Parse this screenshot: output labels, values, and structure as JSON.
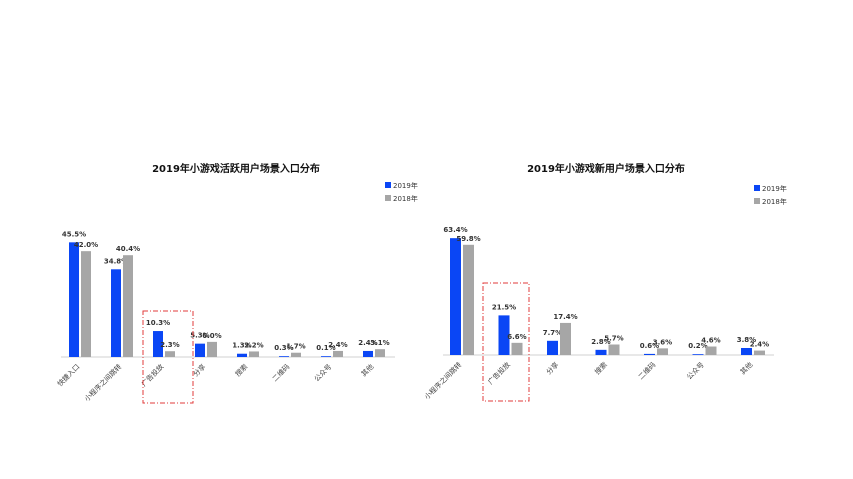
{
  "colors": {
    "series_2019": "#0a46f5",
    "series_2018": "#a6a6a6",
    "baseline": "#d0d0d0",
    "highlight": "#e23b3b",
    "leader": "#999999"
  },
  "chart_data": [
    {
      "type": "bar",
      "title": "2019年小游戏活跃用户场景入口分布",
      "categories": [
        "快捷入口",
        "小程序之间跳转",
        "广告投放",
        "分享",
        "搜索",
        "二维码",
        "公众号",
        "其他"
      ],
      "series": [
        {
          "name": "2019年",
          "values": [
            45.5,
            34.8,
            10.3,
            5.3,
            1.3,
            0.3,
            0.1,
            2.4
          ],
          "labels": [
            "45.5%",
            "34.8%",
            "10.3%",
            "5.3%",
            "1.3%",
            "0.3%",
            "0.1%",
            "2.4%"
          ]
        },
        {
          "name": "2018年",
          "values": [
            42.0,
            40.4,
            2.3,
            6.0,
            2.2,
            1.7,
            2.4,
            3.1
          ],
          "labels": [
            "42.0%",
            "40.4%",
            "2.3%",
            "6.0%",
            "2.2%",
            "1.7%",
            "2.4%",
            "3.1%"
          ]
        }
      ],
      "ylim": [
        0,
        50
      ],
      "grid": false,
      "legend": "top-right",
      "highlight_category": "广告投放"
    },
    {
      "type": "bar",
      "title": "2019年小游戏新用户场景入口分布",
      "categories": [
        "小程序之间跳转",
        "广告投放",
        "分享",
        "搜索",
        "二维码",
        "公众号",
        "其他"
      ],
      "series": [
        {
          "name": "2019年",
          "values": [
            63.4,
            21.5,
            7.7,
            2.8,
            0.6,
            0.2,
            3.8
          ],
          "labels": [
            "63.4%",
            "21.5%",
            "7.7%",
            "2.8%",
            "0.6%",
            "0.2%",
            "3.8%"
          ]
        },
        {
          "name": "2018年",
          "values": [
            59.8,
            6.6,
            17.4,
            5.7,
            3.6,
            4.6,
            2.4
          ],
          "labels": [
            "59.8%",
            "6.6%",
            "17.4%",
            "5.7%",
            "3.6%",
            "4.6%",
            "2.4%"
          ]
        }
      ],
      "ylim": [
        0,
        70
      ],
      "grid": false,
      "legend": "top-right",
      "highlight_category": "广告投放"
    }
  ]
}
